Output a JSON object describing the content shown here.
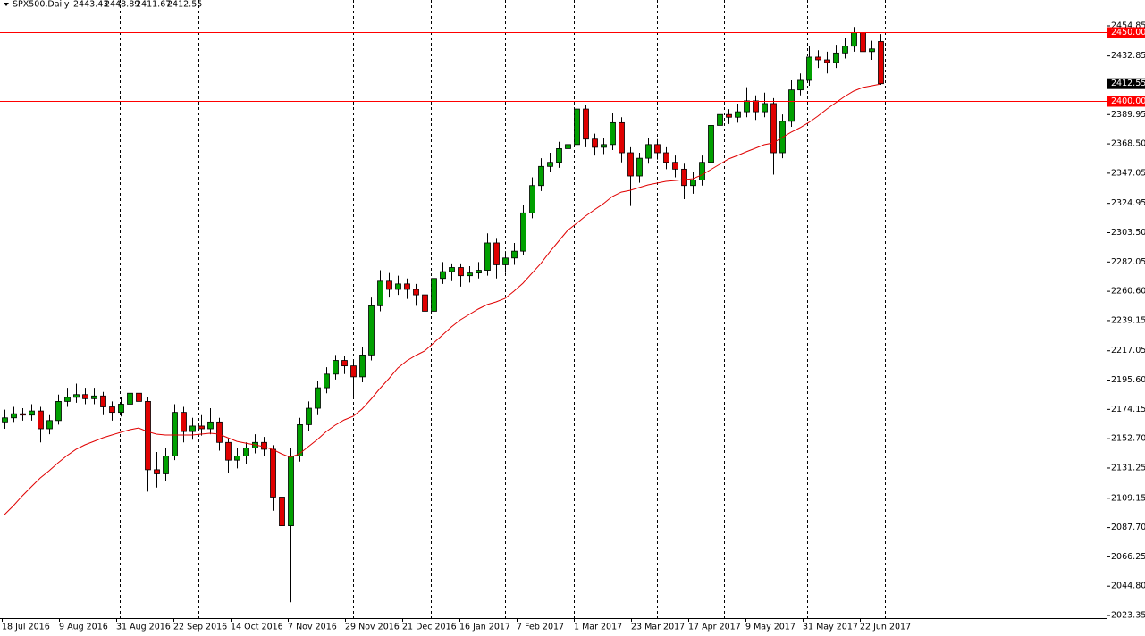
{
  "chart_data": {
    "type": "candlestick",
    "symbol": "SPX500,Daily",
    "ylim": [
      2021.4,
      2473.8
    ],
    "yticks": [
      2454.85,
      2432.85,
      2389.95,
      {
        "value": 2368.5,
        "label": "2368.50"
      },
      2347.05,
      2324.95,
      {
        "value": 2303.5,
        "label": "2303.50"
      },
      2282.05,
      {
        "value": 2260.6,
        "label": "2260.60"
      },
      2239.15,
      2217.05,
      {
        "value": 2195.6,
        "label": "2195.60"
      },
      2174.15,
      {
        "value": 2152.7,
        "label": "2152.70"
      },
      2131.25,
      2109.15,
      {
        "value": 2087.7,
        "label": "2087.70"
      },
      2066.25,
      {
        "value": 2044.8,
        "label": "2044.80"
      },
      2023.35
    ],
    "x_labels": [
      "18 Jul 2016",
      "9 Aug 2016",
      "31 Aug 2016",
      "22 Sep 2016",
      "14 Oct 2016",
      "7 Nov 2016",
      "29 Nov 2016",
      "21 Dec 2016",
      "16 Jan 2017",
      "7 Feb 2017",
      "1 Mar 2017",
      "23 Mar 2017",
      "17 Apr 2017",
      "9 May 2017",
      "31 May 2017",
      "22 Jun 2017"
    ],
    "levels": [
      {
        "value": 2450,
        "label": "2450.00"
      },
      {
        "value": 2400,
        "label": "2400.00"
      }
    ],
    "level_color": "#ff0000",
    "up_color": "#00a000",
    "down_color": "#e00000",
    "ma_color": "#e00000",
    "candles": [
      [
        2165,
        2174,
        2160,
        2168
      ],
      [
        2168,
        2176,
        2165,
        2171
      ],
      [
        2171,
        2175,
        2166,
        2170
      ],
      [
        2170,
        2178,
        2166,
        2173
      ],
      [
        2173,
        2176,
        2150,
        2160
      ],
      [
        2160,
        2170,
        2156,
        2166
      ],
      [
        2166,
        2185,
        2163,
        2180
      ],
      [
        2180,
        2190,
        2176,
        2183
      ],
      [
        2183,
        2193,
        2179,
        2185
      ],
      [
        2185,
        2190,
        2178,
        2182
      ],
      [
        2182,
        2190,
        2178,
        2184
      ],
      [
        2184,
        2187,
        2170,
        2176
      ],
      [
        2176,
        2180,
        2166,
        2172
      ],
      [
        2172,
        2183,
        2169,
        2178
      ],
      [
        2178,
        2190,
        2175,
        2186
      ],
      [
        2186,
        2190,
        2176,
        2180
      ],
      [
        2180,
        2183,
        2114,
        2130
      ],
      [
        2130,
        2143,
        2117,
        2127
      ],
      [
        2127,
        2146,
        2122,
        2140
      ],
      [
        2140,
        2178,
        2137,
        2172
      ],
      [
        2172,
        2176,
        2150,
        2158
      ],
      [
        2158,
        2168,
        2152,
        2162
      ],
      [
        2162,
        2170,
        2155,
        2160
      ],
      [
        2160,
        2175,
        2156,
        2165
      ],
      [
        2165,
        2168,
        2144,
        2150
      ],
      [
        2150,
        2153,
        2128,
        2137
      ],
      [
        2137,
        2146,
        2131,
        2140
      ],
      [
        2140,
        2150,
        2134,
        2146
      ],
      [
        2146,
        2156,
        2142,
        2150
      ],
      [
        2150,
        2154,
        2140,
        2145
      ],
      [
        2145,
        2148,
        2100,
        2110
      ],
      [
        2110,
        2114,
        2084,
        2089
      ],
      [
        2089,
        2146,
        2033,
        2140
      ],
      [
        2140,
        2168,
        2136,
        2163
      ],
      [
        2163,
        2180,
        2158,
        2175
      ],
      [
        2175,
        2195,
        2170,
        2190
      ],
      [
        2190,
        2205,
        2186,
        2200
      ],
      [
        2200,
        2214,
        2196,
        2210
      ],
      [
        2210,
        2213,
        2200,
        2206
      ],
      [
        2206,
        2210,
        2183,
        2198
      ],
      [
        2198,
        2220,
        2194,
        2214
      ],
      [
        2214,
        2256,
        2210,
        2250
      ],
      [
        2250,
        2276,
        2246,
        2268
      ],
      [
        2268,
        2274,
        2256,
        2262
      ],
      [
        2262,
        2272,
        2258,
        2266
      ],
      [
        2266,
        2270,
        2255,
        2262
      ],
      [
        2262,
        2266,
        2250,
        2258
      ],
      [
        2258,
        2261,
        2232,
        2246
      ],
      [
        2246,
        2275,
        2242,
        2270
      ],
      [
        2270,
        2282,
        2266,
        2275
      ],
      [
        2275,
        2281,
        2268,
        2278
      ],
      [
        2278,
        2281,
        2264,
        2272
      ],
      [
        2272,
        2279,
        2267,
        2274
      ],
      [
        2274,
        2282,
        2270,
        2276
      ],
      [
        2276,
        2303,
        2272,
        2296
      ],
      [
        2296,
        2299,
        2270,
        2280
      ],
      [
        2280,
        2290,
        2274,
        2285
      ],
      [
        2285,
        2296,
        2280,
        2290
      ],
      [
        2290,
        2324,
        2287,
        2318
      ],
      [
        2318,
        2344,
        2314,
        2338
      ],
      [
        2338,
        2358,
        2334,
        2352
      ],
      [
        2352,
        2362,
        2348,
        2355
      ],
      [
        2355,
        2370,
        2351,
        2365
      ],
      [
        2365,
        2374,
        2361,
        2368
      ],
      [
        2368,
        2401,
        2364,
        2394
      ],
      [
        2394,
        2397,
        2366,
        2372
      ],
      [
        2372,
        2376,
        2360,
        2366
      ],
      [
        2366,
        2373,
        2361,
        2368
      ],
      [
        2368,
        2391,
        2364,
        2384
      ],
      [
        2384,
        2388,
        2355,
        2362
      ],
      [
        2362,
        2366,
        2323,
        2345
      ],
      [
        2345,
        2362,
        2340,
        2358
      ],
      [
        2358,
        2373,
        2354,
        2368
      ],
      [
        2368,
        2372,
        2357,
        2362
      ],
      [
        2362,
        2366,
        2350,
        2355
      ],
      [
        2355,
        2360,
        2344,
        2350
      ],
      [
        2350,
        2354,
        2328,
        2338
      ],
      [
        2338,
        2348,
        2332,
        2342
      ],
      [
        2342,
        2360,
        2338,
        2355
      ],
      [
        2355,
        2388,
        2351,
        2382
      ],
      [
        2382,
        2396,
        2378,
        2390
      ],
      [
        2390,
        2394,
        2383,
        2388
      ],
      [
        2388,
        2398,
        2384,
        2392
      ],
      [
        2392,
        2410,
        2388,
        2400
      ],
      [
        2400,
        2404,
        2386,
        2392
      ],
      [
        2392,
        2406,
        2388,
        2398
      ],
      [
        2398,
        2402,
        2346,
        2362
      ],
      [
        2362,
        2390,
        2358,
        2385
      ],
      [
        2385,
        2415,
        2381,
        2408
      ],
      [
        2408,
        2420,
        2404,
        2415
      ],
      [
        2415,
        2440,
        2411,
        2432
      ],
      [
        2432,
        2437,
        2424,
        2430
      ],
      [
        2430,
        2436,
        2420,
        2428
      ],
      [
        2428,
        2441,
        2424,
        2435
      ],
      [
        2435,
        2446,
        2431,
        2440
      ],
      [
        2440,
        2454,
        2436,
        2450
      ],
      [
        2450,
        2453,
        2430,
        2436
      ],
      [
        2436,
        2444,
        2430,
        2438
      ],
      [
        2443.43,
        2448.89,
        2411.67,
        2412.55
      ]
    ],
    "ma": [
      2097.2,
      2103.7,
      2110.9,
      2117.5,
      2124.0,
      2129.3,
      2135.1,
      2140.4,
      2144.9,
      2148.2,
      2150.8,
      2153.4,
      2155.4,
      2157.4,
      2159.3,
      2160.6,
      2158.0,
      2156.1,
      2155.4,
      2155.4,
      2155.4,
      2155.4,
      2156.1,
      2156.7,
      2156.1,
      2153.4,
      2150.8,
      2149.5,
      2148.2,
      2146.9,
      2144.9,
      2141.7,
      2139.1,
      2141.7,
      2146.9,
      2152.1,
      2158.0,
      2162.6,
      2166.5,
      2169.1,
      2174.4,
      2181.6,
      2189.4,
      2196.6,
      2204.4,
      2209.7,
      2213.6,
      2216.9,
      2222.7,
      2228.6,
      2234.5,
      2239.7,
      2243.7,
      2247.6,
      2250.9,
      2252.8,
      2255.4,
      2260.7,
      2266.5,
      2273.7,
      2280.9,
      2289.4,
      2297.3,
      2305.1,
      2310.3,
      2315.6,
      2320.2,
      2324.7,
      2330.0,
      2333.2,
      2334.5,
      2336.5,
      2338.5,
      2339.8,
      2341.1,
      2341.7,
      2342.4,
      2343.0,
      2345.7,
      2349.6,
      2353.5,
      2357.4,
      2360.0,
      2362.7,
      2365.3,
      2367.9,
      2369.2,
      2373.1,
      2377.0,
      2380.3,
      2384.2,
      2388.8,
      2394.0,
      2398.6,
      2403.2,
      2407.1,
      2409.7,
      2411.0,
      2412.3
    ]
  }
}
